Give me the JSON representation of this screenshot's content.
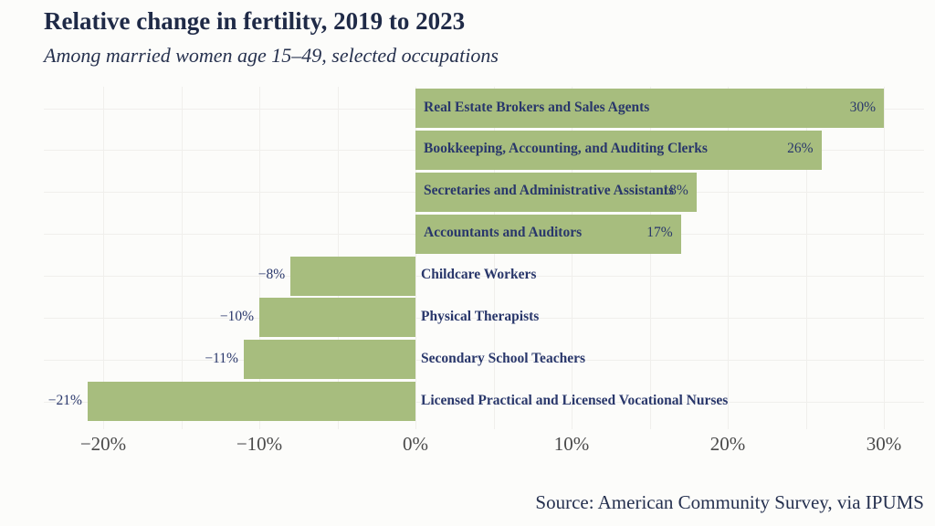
{
  "title": "Relative change in fertility, 2019 to 2023",
  "subtitle": "Among married women age 15–49, selected occupations",
  "source": "Source: American Community Survey, via IPUMS",
  "colors": {
    "bar": "#a7bd7e",
    "title_text": "#1f2a47",
    "label_text": "#29376b",
    "tick_text": "#4a4a4a",
    "gridline": "#f0efec",
    "background": "#fcfcfa"
  },
  "chart_data": {
    "type": "bar",
    "orientation": "horizontal",
    "title": "Relative change in fertility, 2019 to 2023",
    "subtitle": "Among married women age 15–49, selected occupations",
    "categories": [
      "Real Estate Brokers and Sales Agents",
      "Bookkeeping, Accounting, and Auditing Clerks",
      "Secretaries and Administrative Assistants",
      "Accountants and Auditors",
      "Childcare Workers",
      "Physical Therapists",
      "Secondary School Teachers",
      "Licensed Practical and Licensed Vocational Nurses"
    ],
    "values": [
      30,
      26,
      18,
      17,
      -8,
      -10,
      -11,
      -21
    ],
    "value_labels": [
      "30%",
      "26%",
      "18%",
      "17%",
      "−8%",
      "−10%",
      "−11%",
      "−21%"
    ],
    "xlabel": "",
    "ylabel": "",
    "xlim": [
      -23.8,
      32.6
    ],
    "x_ticks": [
      -20,
      -10,
      0,
      10,
      20,
      30
    ],
    "x_tick_labels": [
      "−20%",
      "−10%",
      "0%",
      "10%",
      "20%",
      "30%"
    ],
    "minor_grid_step_pct": 5,
    "grid": "faint vertical lines every 5%, faint horizontal lines through bar centers",
    "legend": "none",
    "source": "Source: American Community Survey, via IPUMS"
  }
}
